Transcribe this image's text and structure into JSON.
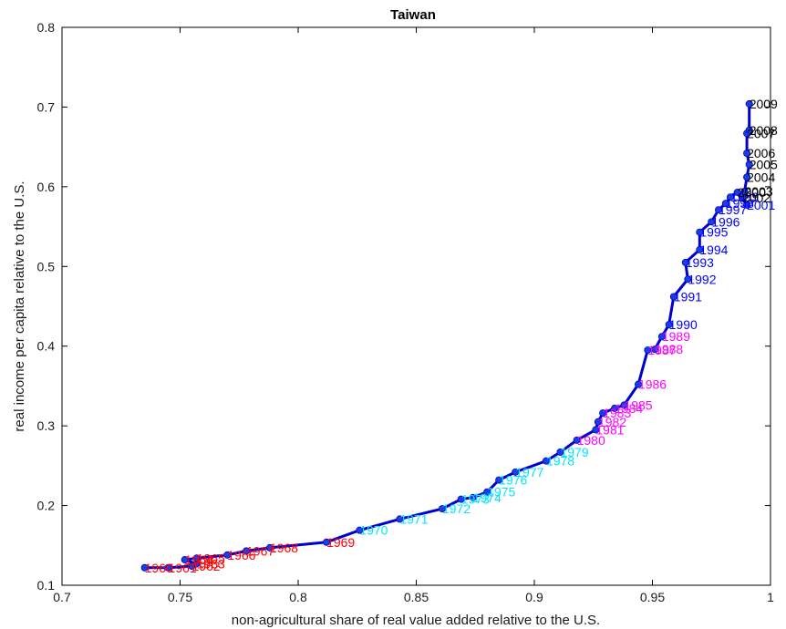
{
  "chart_data": {
    "type": "line",
    "title": "Taiwan",
    "xlabel": "non-agricultural share of real value added relative to the U.S.",
    "ylabel": "real income per capita relative to the U.S.",
    "xlim": [
      0.7,
      1.0
    ],
    "ylim": [
      0.1,
      0.8
    ],
    "xticks": [
      0.7,
      0.75,
      0.8,
      0.85,
      0.9,
      0.95,
      1.0
    ],
    "xtick_labels": [
      "0.7",
      "0.75",
      "0.8",
      "0.85",
      "0.9",
      "0.95",
      "1"
    ],
    "yticks": [
      0.1,
      0.2,
      0.3,
      0.4,
      0.5,
      0.6,
      0.7,
      0.8
    ],
    "ytick_labels": [
      "0.1",
      "0.2",
      "0.3",
      "0.4",
      "0.5",
      "0.6",
      "0.7",
      "0.8"
    ],
    "grid": false,
    "line_color": "#0000cc",
    "marker_color": "#1a3fe0",
    "points": [
      {
        "year": "1960",
        "x": 0.735,
        "y": 0.122,
        "color": "#ff0000"
      },
      {
        "year": "1961",
        "x": 0.745,
        "y": 0.122,
        "color": "#ff0000"
      },
      {
        "year": "1962",
        "x": 0.755,
        "y": 0.124,
        "color": "#ff0000"
      },
      {
        "year": "1963",
        "x": 0.757,
        "y": 0.127,
        "color": "#ff0000"
      },
      {
        "year": "1964",
        "x": 0.752,
        "y": 0.132,
        "color": "#ff0000"
      },
      {
        "year": "1965",
        "x": 0.757,
        "y": 0.134,
        "color": "#ff0000"
      },
      {
        "year": "1966",
        "x": 0.77,
        "y": 0.138,
        "color": "#ff0000"
      },
      {
        "year": "1967",
        "x": 0.778,
        "y": 0.143,
        "color": "#ff0000"
      },
      {
        "year": "1968",
        "x": 0.788,
        "y": 0.147,
        "color": "#ff0000"
      },
      {
        "year": "1969",
        "x": 0.812,
        "y": 0.154,
        "color": "#ff0000"
      },
      {
        "year": "1970",
        "x": 0.826,
        "y": 0.169,
        "color": "#00e5ff"
      },
      {
        "year": "1971",
        "x": 0.843,
        "y": 0.183,
        "color": "#00e5ff"
      },
      {
        "year": "1972",
        "x": 0.861,
        "y": 0.196,
        "color": "#00e5ff"
      },
      {
        "year": "1973",
        "x": 0.869,
        "y": 0.208,
        "color": "#00e5ff"
      },
      {
        "year": "1974",
        "x": 0.874,
        "y": 0.21,
        "color": "#00e5ff"
      },
      {
        "year": "1975",
        "x": 0.88,
        "y": 0.217,
        "color": "#00e5ff"
      },
      {
        "year": "1976",
        "x": 0.885,
        "y": 0.232,
        "color": "#00e5ff"
      },
      {
        "year": "1977",
        "x": 0.892,
        "y": 0.242,
        "color": "#00e5ff"
      },
      {
        "year": "1978",
        "x": 0.905,
        "y": 0.256,
        "color": "#00e5ff"
      },
      {
        "year": "1979",
        "x": 0.911,
        "y": 0.267,
        "color": "#00e5ff"
      },
      {
        "year": "1980",
        "x": 0.918,
        "y": 0.282,
        "color": "#ff00ff"
      },
      {
        "year": "1981",
        "x": 0.926,
        "y": 0.295,
        "color": "#ff00ff"
      },
      {
        "year": "1982",
        "x": 0.927,
        "y": 0.305,
        "color": "#ff00ff"
      },
      {
        "year": "1983",
        "x": 0.929,
        "y": 0.316,
        "color": "#ff00ff"
      },
      {
        "year": "1984",
        "x": 0.934,
        "y": 0.322,
        "color": "#ff00ff"
      },
      {
        "year": "1985",
        "x": 0.938,
        "y": 0.326,
        "color": "#ff00ff"
      },
      {
        "year": "1986",
        "x": 0.944,
        "y": 0.352,
        "color": "#ff00ff"
      },
      {
        "year": "1987",
        "x": 0.948,
        "y": 0.395,
        "color": "#ff00ff"
      },
      {
        "year": "1988",
        "x": 0.951,
        "y": 0.396,
        "color": "#ff00ff"
      },
      {
        "year": "1989",
        "x": 0.954,
        "y": 0.412,
        "color": "#ff00ff"
      },
      {
        "year": "1990",
        "x": 0.957,
        "y": 0.427,
        "color": "#0000ff"
      },
      {
        "year": "1991",
        "x": 0.959,
        "y": 0.462,
        "color": "#0000ff"
      },
      {
        "year": "1992",
        "x": 0.965,
        "y": 0.484,
        "color": "#0000ff"
      },
      {
        "year": "1993",
        "x": 0.964,
        "y": 0.505,
        "color": "#0000ff"
      },
      {
        "year": "1994",
        "x": 0.97,
        "y": 0.521,
        "color": "#0000ff"
      },
      {
        "year": "1995",
        "x": 0.97,
        "y": 0.543,
        "color": "#0000ff"
      },
      {
        "year": "1996",
        "x": 0.975,
        "y": 0.556,
        "color": "#0000ff"
      },
      {
        "year": "1997",
        "x": 0.978,
        "y": 0.571,
        "color": "#0000ff"
      },
      {
        "year": "1998",
        "x": 0.981,
        "y": 0.579,
        "color": "#0000ff"
      },
      {
        "year": "1999",
        "x": 0.983,
        "y": 0.587,
        "color": "#0000ff"
      },
      {
        "year": "2000",
        "x": 0.986,
        "y": 0.593,
        "color": "#000000"
      },
      {
        "year": "2001",
        "x": 0.99,
        "y": 0.577,
        "color": "#0000ff"
      },
      {
        "year": "2002",
        "x": 0.988,
        "y": 0.586,
        "color": "#000000"
      },
      {
        "year": "2003",
        "x": 0.989,
        "y": 0.594,
        "color": "#000000"
      },
      {
        "year": "2004",
        "x": 0.99,
        "y": 0.612,
        "color": "#000000"
      },
      {
        "year": "2005",
        "x": 0.991,
        "y": 0.628,
        "color": "#000000"
      },
      {
        "year": "2006",
        "x": 0.99,
        "y": 0.642,
        "color": "#000000"
      },
      {
        "year": "2007",
        "x": 0.99,
        "y": 0.667,
        "color": "#000000"
      },
      {
        "year": "2008",
        "x": 0.991,
        "y": 0.671,
        "color": "#000000"
      },
      {
        "year": "2009",
        "x": 0.991,
        "y": 0.704,
        "color": "#000000"
      }
    ]
  }
}
